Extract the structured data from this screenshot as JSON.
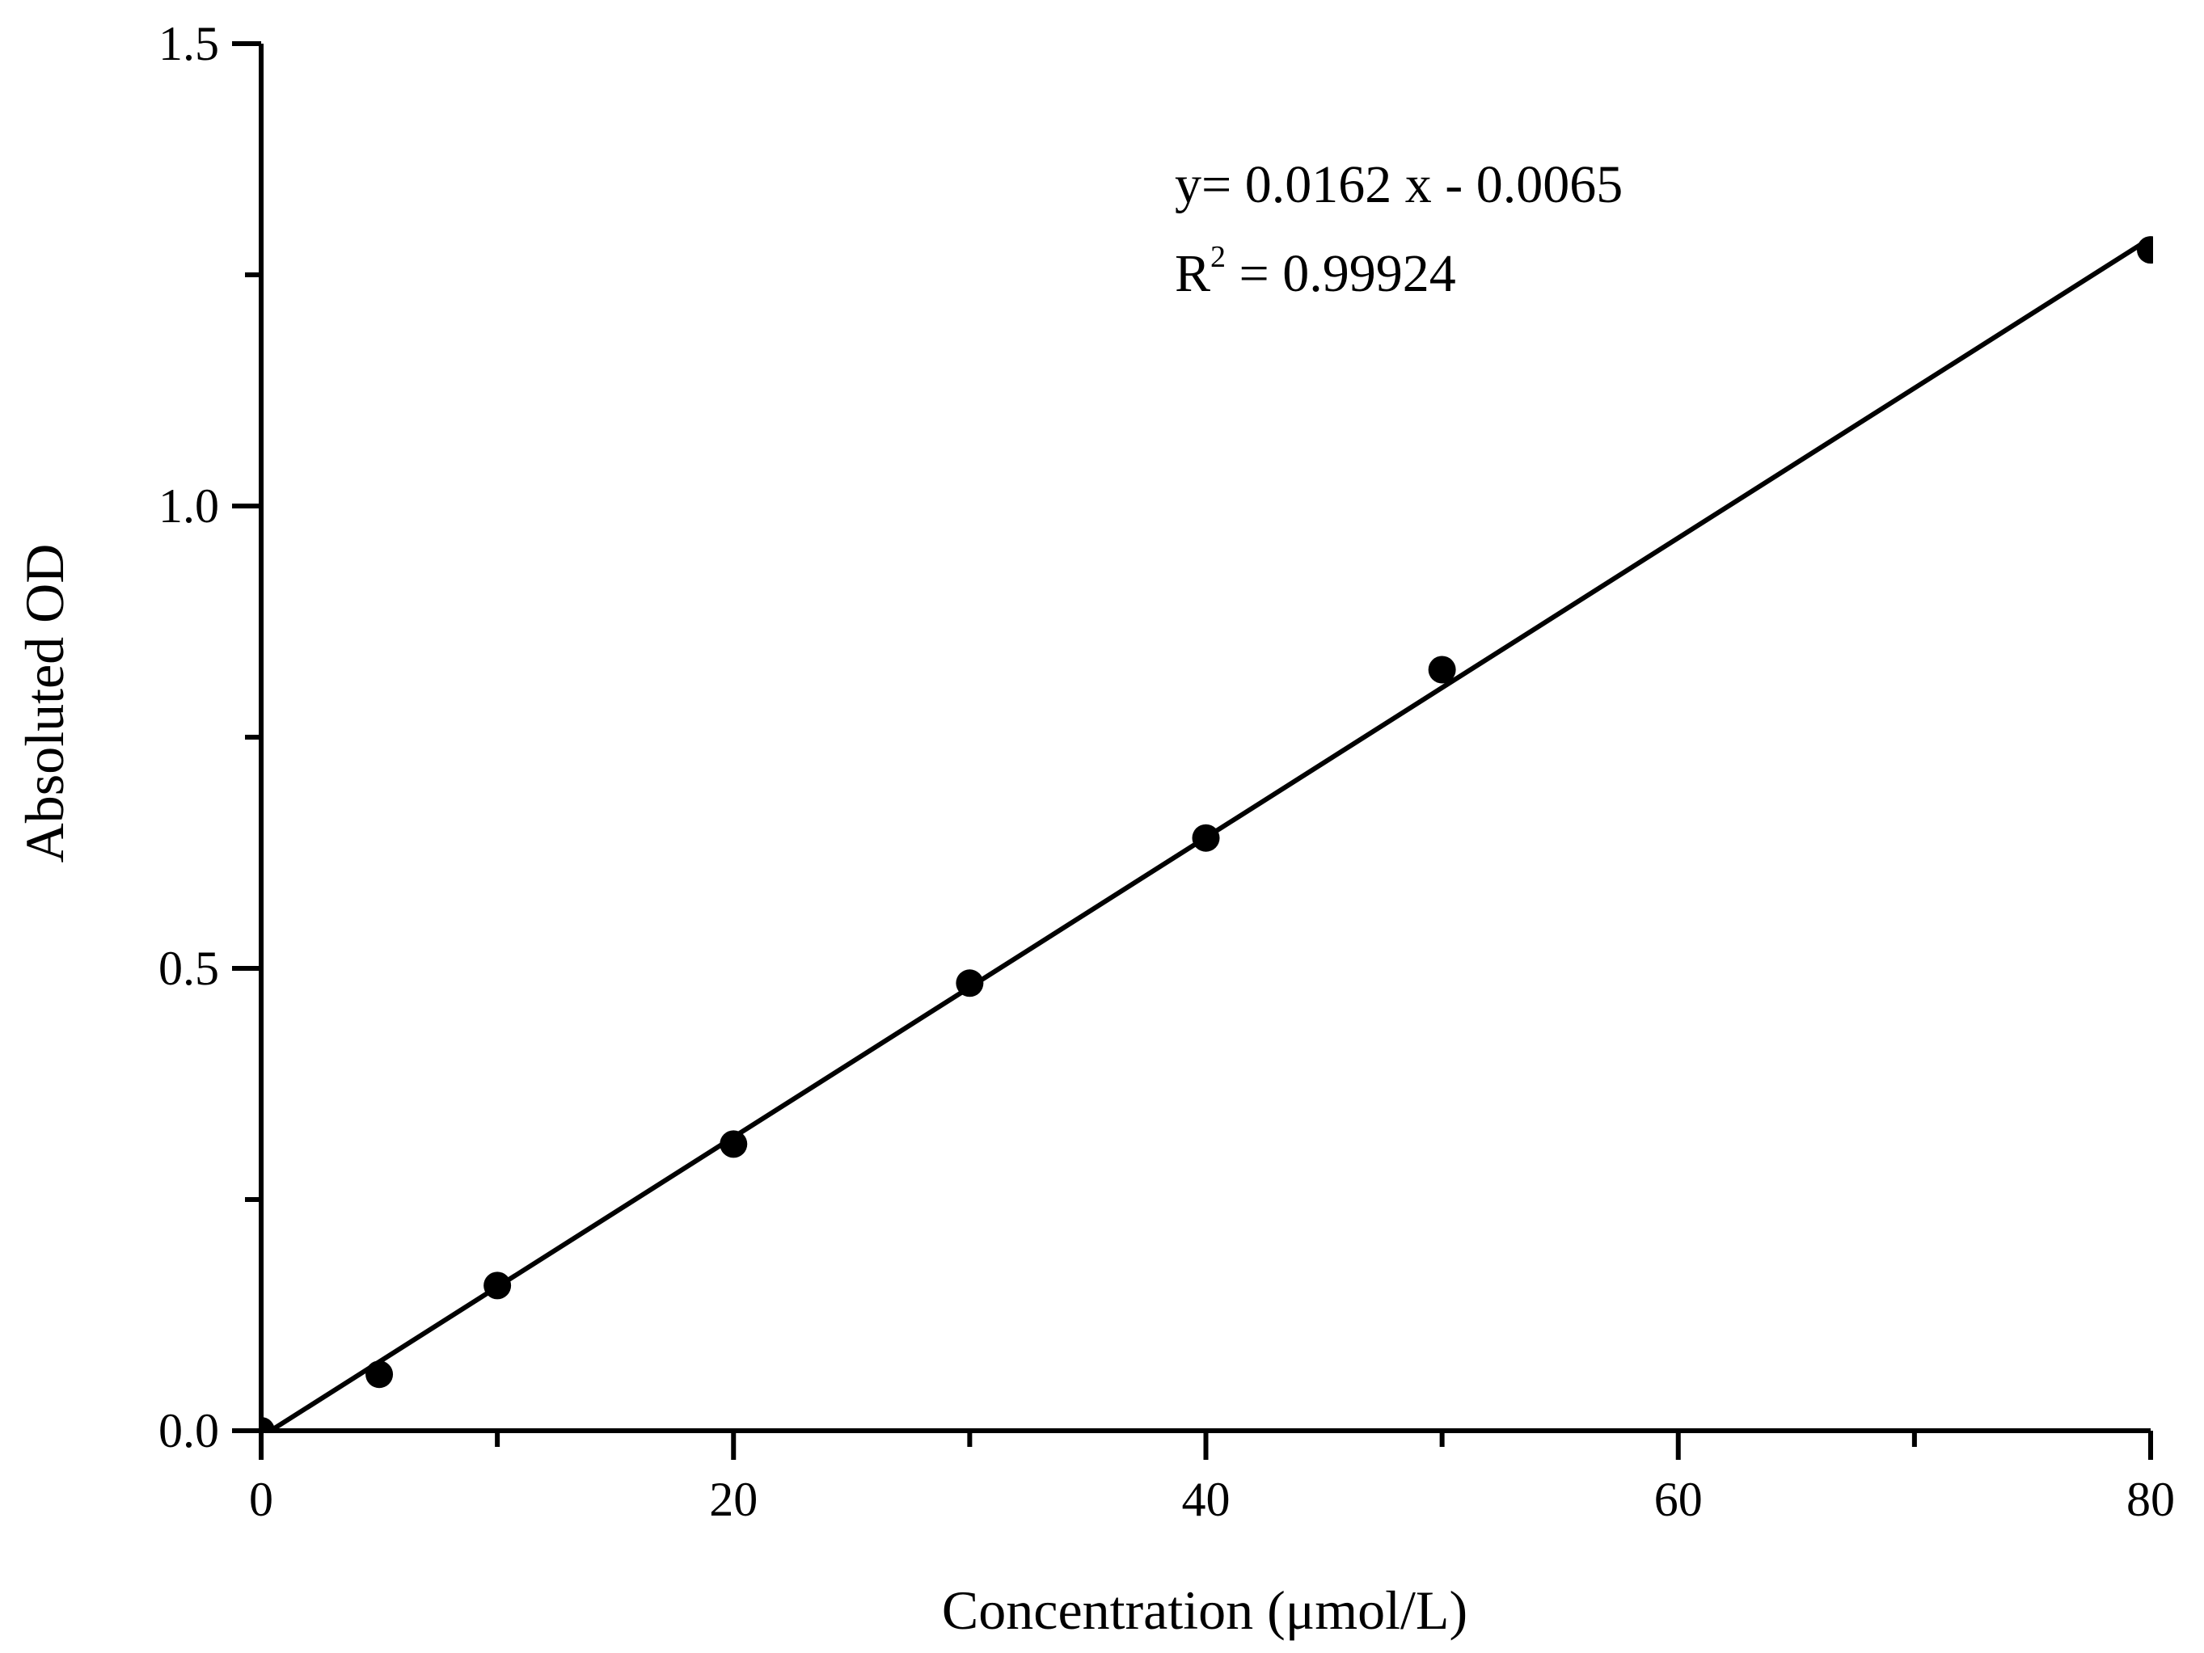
{
  "chart_data": {
    "type": "scatter",
    "title": "",
    "xlabel": "Concentration (μmol/L)",
    "ylabel": "Absoluted OD",
    "xlim": [
      0,
      80
    ],
    "ylim": [
      0,
      1.5
    ],
    "x_ticks": [
      "0",
      "20",
      "40",
      "60",
      "80"
    ],
    "y_ticks": [
      "0.0",
      "0.5",
      "1.0",
      "1.5"
    ],
    "grid": false,
    "legend": "none",
    "points": {
      "x": [
        0,
        5,
        10,
        20,
        30,
        40,
        50,
        80
      ],
      "y": [
        0.0,
        0.061,
        0.157,
        0.31,
        0.484,
        0.641,
        0.823,
        1.277
      ]
    },
    "fit": {
      "slope": 0.0162,
      "intercept": -0.0065
    },
    "annotations": {
      "equation": "y= 0.0162 x - 0.0065",
      "r2_prefix": "R",
      "r2_sup": "2",
      "r2_value": " = 0.99924"
    },
    "colors": {
      "marks": "#000000",
      "line": "#000000"
    }
  }
}
